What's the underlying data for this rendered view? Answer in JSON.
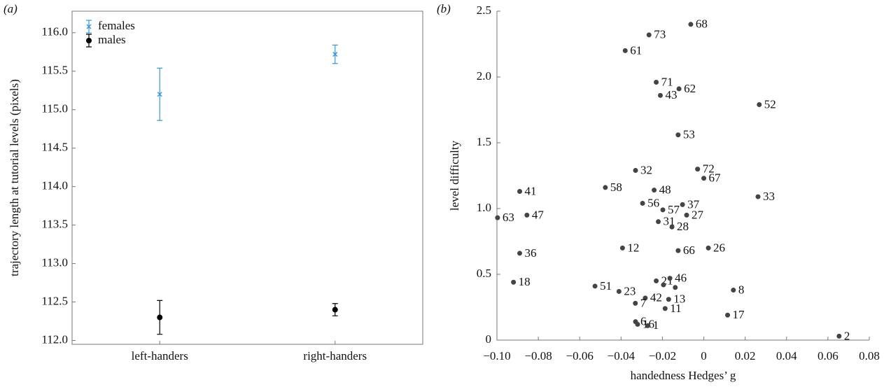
{
  "chart_data": [
    {
      "type": "errorbar",
      "panel_label": "(a)",
      "y_label": "trajectory length at tutorial levels (pixels)",
      "categories": [
        "left-handers",
        "right-handers"
      ],
      "series": [
        {
          "name": "females",
          "color": "#3a9ad9",
          "marker": "x",
          "values": [
            115.2,
            115.72
          ],
          "errors": [
            0.34,
            0.12
          ]
        },
        {
          "name": "males",
          "color": "#000000",
          "marker": "o",
          "values": [
            112.3,
            112.4
          ],
          "errors": [
            0.22,
            0.08
          ]
        }
      ],
      "ylim": [
        111.95,
        116.28
      ],
      "yticks": [
        {
          "value": 112,
          "label": "112.0"
        },
        {
          "value": 112.5,
          "label": "112.5"
        },
        {
          "value": 113,
          "label": "113.0"
        },
        {
          "value": 113.5,
          "label": "113.5"
        },
        {
          "value": 114,
          "label": "114.0"
        },
        {
          "value": 114.5,
          "label": "114.5"
        },
        {
          "value": 115,
          "label": "115.0"
        },
        {
          "value": 115.5,
          "label": "115.5"
        },
        {
          "value": 116,
          "label": "116.0"
        }
      ],
      "legend": "upper-left"
    },
    {
      "type": "scatter",
      "panel_label": "(b)",
      "x_label": "handedness Hedges’ g",
      "y_label": "level difficulty",
      "color": "#444444",
      "x": [
        -0.0063,
        -0.0265,
        -0.038,
        -0.023,
        -0.012,
        -0.021,
        0.0268,
        -0.0124,
        -0.033,
        -0.003,
        0.0,
        -0.089,
        -0.0476,
        -0.024,
        0.0262,
        -0.0103,
        -0.0296,
        -0.0198,
        -0.0997,
        -0.0855,
        -0.0083,
        -0.022,
        -0.0154,
        -0.0393,
        -0.0124,
        0.0022,
        -0.089,
        -0.092,
        -0.0526,
        -0.023,
        -0.0164,
        -0.041,
        -0.0195,
        -0.0138,
        0.0143,
        -0.0283,
        -0.017,
        -0.0331,
        -0.0187,
        0.0115,
        -0.033,
        -0.032,
        -0.027,
        0.0654
      ],
      "values": [
        2.4,
        2.32,
        2.2,
        1.96,
        1.91,
        1.86,
        1.79,
        1.56,
        1.29,
        1.3,
        1.23,
        1.13,
        1.16,
        1.14,
        1.09,
        1.03,
        1.04,
        0.99,
        0.93,
        0.95,
        0.95,
        0.9,
        0.86,
        0.7,
        0.68,
        0.7,
        0.66,
        0.44,
        0.41,
        0.45,
        0.47,
        0.37,
        0.42,
        0.4,
        0.38,
        0.32,
        0.31,
        0.28,
        0.24,
        0.19,
        0.14,
        0.12,
        0.11,
        0.03
      ],
      "point_labels": [
        "68",
        "73",
        "61",
        "71",
        "62",
        "43",
        "52",
        "53",
        "32",
        "72",
        "67",
        "41",
        "58",
        "48",
        "33",
        "37",
        "56",
        "57",
        "63",
        "47",
        "27",
        "31",
        "28",
        "12",
        "66",
        "26",
        "36",
        "18",
        "51",
        "21",
        "46",
        "23",
        null,
        null,
        "8",
        "42",
        "13",
        "7",
        "11",
        "17",
        "6",
        "16",
        "1",
        "2"
      ],
      "xlim": [
        -0.1,
        0.08
      ],
      "xticks": [
        {
          "value": -0.1,
          "label": "−0.10"
        },
        {
          "value": -0.08,
          "label": "−0.08"
        },
        {
          "value": -0.06,
          "label": "−0.06"
        },
        {
          "value": -0.04,
          "label": "−0.04"
        },
        {
          "value": -0.02,
          "label": "−0.02"
        },
        0,
        0.02,
        0.04,
        0.06,
        0.08
      ],
      "ylim": [
        0,
        2.5
      ],
      "yticks": [
        0,
        0.5,
        {
          "value": 1,
          "label": "1.0"
        },
        1.5,
        {
          "value": 2,
          "label": "2.0"
        },
        2.5
      ]
    }
  ]
}
